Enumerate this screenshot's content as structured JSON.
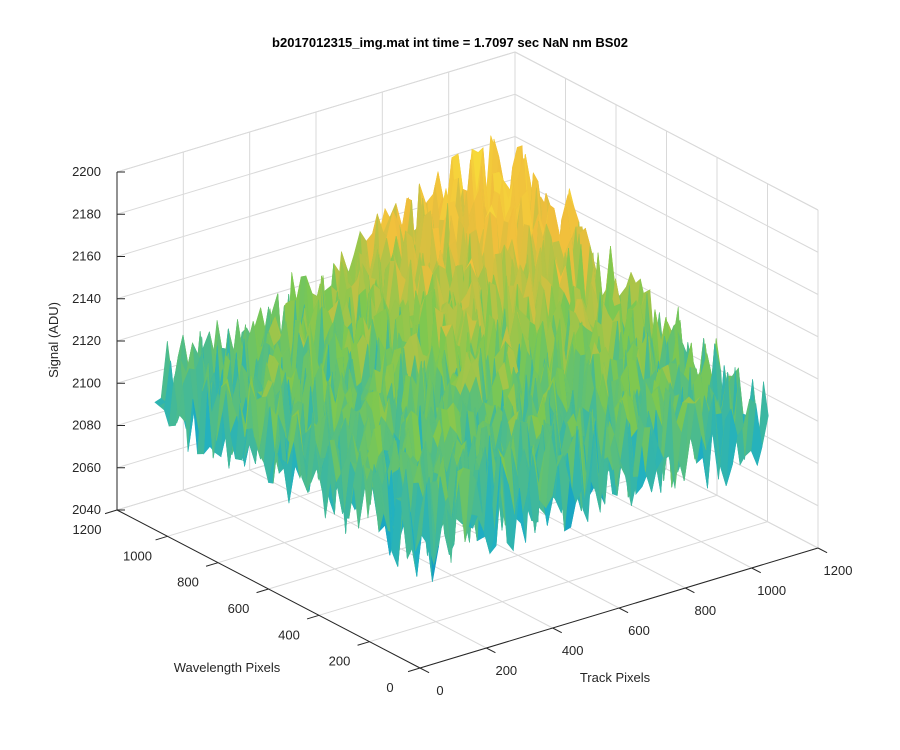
{
  "chart_data": {
    "type": "surface",
    "title": "b2017012315_img.mat int time = 1.7097 sec  NaN nm BS02",
    "xlabel": "Track Pixels",
    "ylabel": "Wavelength Pixels",
    "zlabel": "Signal (ADU)",
    "xlim": [
      0,
      1200
    ],
    "ylim": [
      0,
      1200
    ],
    "zlim": [
      2040,
      2200
    ],
    "x_ticks": [
      "0",
      "200",
      "400",
      "600",
      "800",
      "1000",
      "1200"
    ],
    "y_ticks": [
      "0",
      "200",
      "400",
      "600",
      "800",
      "1000",
      "1200"
    ],
    "z_ticks": [
      "2040",
      "2060",
      "2080",
      "2100",
      "2120",
      "2140",
      "2160",
      "2180",
      "2200"
    ],
    "surface": {
      "x_range": [
        0,
        1050
      ],
      "y_range": [
        0,
        1050
      ],
      "z_mean": 2110,
      "z_min_approx": 2040,
      "z_max_approx": 2190,
      "peak_location": {
        "x": 1050,
        "y": 1050,
        "z": 2180
      },
      "description_colormap": "parula"
    },
    "grid": true,
    "view": "3d-isometric"
  },
  "colors": {
    "low": "#0072bd",
    "mid_low": "#1fb0c4",
    "mid": "#7ec850",
    "high": "#f0be3c",
    "peak": "#f9e03a"
  }
}
